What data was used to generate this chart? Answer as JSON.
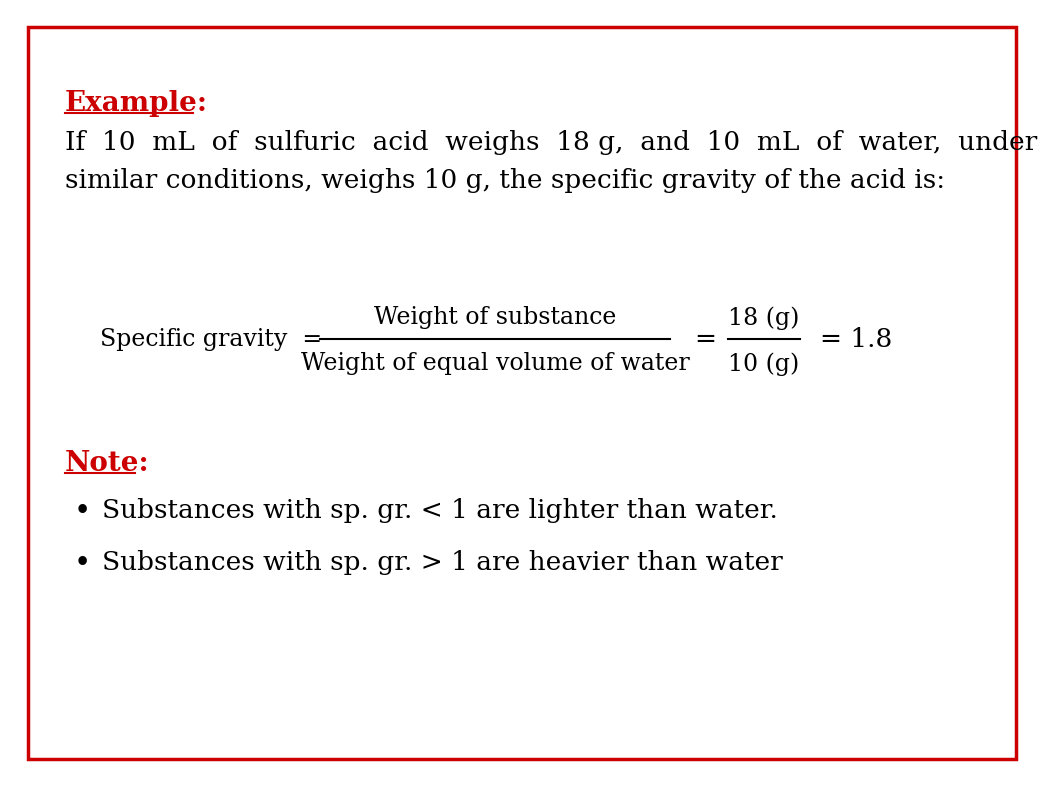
{
  "background_color": "#ffffff",
  "border_color": "#cc0000",
  "border_linewidth": 2.5,
  "example_label": "Example:",
  "example_color": "#cc0000",
  "example_fontsize": 20,
  "body_text_line1": "If  10  mL  of  sulfuric  acid  weighs  18 g,  and  10  mL  of  water,  under",
  "body_text_line2": "similar conditions, weighs 10 g, the specific gravity of the acid is:",
  "body_fontsize": 19,
  "body_color": "#000000",
  "formula_lhs": "Specific gravity  =",
  "formula_numerator": "Weight of substance",
  "formula_denominator": "Weight of equal volume of water",
  "formula_eq1": "=",
  "formula_frac_num": "18 (g)",
  "formula_frac_den": "10 (g)",
  "formula_eq2": "= 1.8",
  "formula_fontsize": 17,
  "note_label": "Note:",
  "note_color": "#cc0000",
  "note_fontsize": 20,
  "bullet1": "Substances with sp. gr. < 1 are lighter than water.",
  "bullet2": "Substances with sp. gr. > 1 are heavier than water",
  "bullet_fontsize": 19,
  "bullet_color": "#000000",
  "fig_width": 10.24,
  "fig_height": 7.68,
  "dpi": 100
}
